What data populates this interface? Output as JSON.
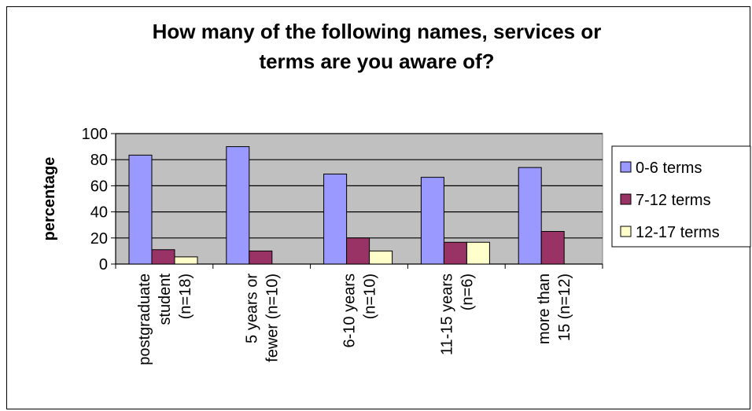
{
  "chart_data": {
    "type": "bar",
    "title_lines": [
      "How many of the following names, services or",
      "terms are you aware of?"
    ],
    "ylabel": "percentage",
    "xlabel": "",
    "ylim": [
      0,
      100
    ],
    "yticks": [
      0,
      20,
      40,
      60,
      80,
      100
    ],
    "grid": true,
    "legend_position": "right",
    "categories": [
      [
        "postgraduate",
        "student",
        "(n=18)"
      ],
      [
        "5 years or",
        "fewer (n=10)"
      ],
      [
        "6-10 years",
        "(n=10)"
      ],
      [
        "11-15 years",
        "(n=6)"
      ],
      [
        "more than",
        "15 (n=12)"
      ]
    ],
    "series": [
      {
        "name": "0-6 terms",
        "color": "#9999ff",
        "values": [
          83.5,
          90,
          69,
          66.5,
          74
        ]
      },
      {
        "name": "7-12 terms",
        "color": "#993366",
        "values": [
          11,
          10,
          20,
          16.7,
          25
        ]
      },
      {
        "name": "12-17 terms",
        "color": "#ffffcc",
        "values": [
          5.5,
          0,
          10,
          16.7,
          0
        ]
      }
    ],
    "plot_background": "#c0c0c0"
  }
}
